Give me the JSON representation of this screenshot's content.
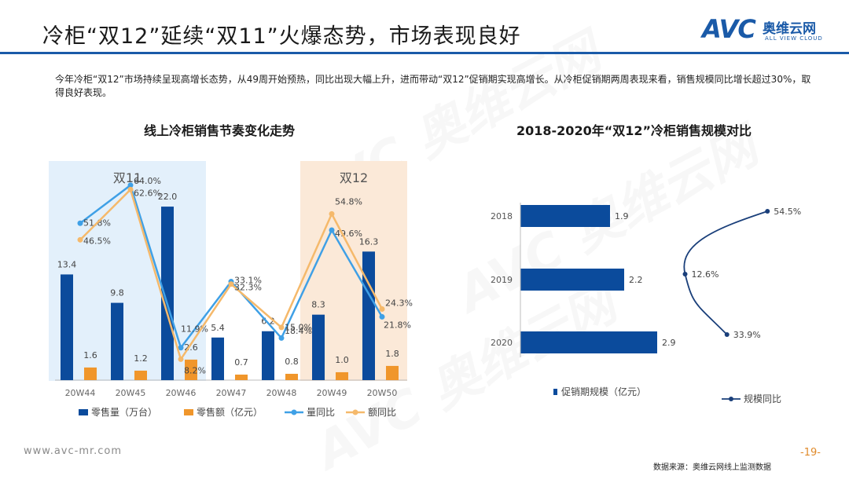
{
  "header": {
    "title": "冷柜“双12”延续“双11”火爆态势，市场表现良好",
    "logo": {
      "mark": "AVC",
      "name_cn": "奥维云网",
      "name_en": "ALL VIEW CLOUD"
    }
  },
  "intro": "今年冷柜“双12”市场持续呈现高增长态势，从49周开始预热，同比出现大幅上升，进而带动“双12”促销期实现高增长。从冷柜促销期两周表现来看，销售规模同比增长超过30%，取得良好表现。",
  "watermark": "AVC 奥维云网",
  "colors": {
    "accent_blue": "#1a5aa8",
    "bar_blue": "#0b4b9c",
    "bar_orange": "#f0962b",
    "line_blue": "#3fa0e6",
    "line_orange": "#f5b96b",
    "highlight_blue": "#e3f0fb",
    "highlight_orange": "#fbe9d8"
  },
  "chart_data": [
    {
      "type": "bar+line",
      "title": "线上冷柜销售节奏变化走势",
      "categories": [
        "20W44",
        "20W45",
        "20W46",
        "20W47",
        "20W48",
        "20W49",
        "20W50"
      ],
      "highlights": [
        {
          "label": "双11",
          "from": "20W44",
          "to": "20W46"
        },
        {
          "label": "双12",
          "from": "20W49",
          "to": "20W50"
        }
      ],
      "series": [
        {
          "name": "零售量（万台）",
          "type": "bar",
          "values": [
            13.4,
            9.8,
            22.0,
            5.4,
            6.2,
            8.3,
            16.3
          ],
          "labels": [
            "13.4",
            "9.8",
            "22.0",
            "5.4",
            "6.2",
            "8.3",
            "16.3"
          ]
        },
        {
          "name": "零售额（亿元）",
          "type": "bar",
          "values": [
            1.6,
            1.2,
            2.6,
            0.7,
            0.8,
            1.0,
            1.8
          ],
          "labels": [
            "1.6",
            "1.2",
            "2.6",
            "0.7",
            "0.8",
            "1.0",
            "1.8"
          ]
        },
        {
          "name": "量同比",
          "type": "line",
          "values": [
            51.8,
            64.0,
            11.9,
            33.1,
            15.0,
            49.6,
            21.8
          ],
          "labels": [
            "51.8%",
            "64.0%",
            "11.9%",
            "33.1%",
            "15.0%",
            "49.6%",
            "21.8%"
          ]
        },
        {
          "name": "额同比",
          "type": "line",
          "values": [
            46.5,
            62.6,
            8.2,
            32.3,
            18.4,
            54.8,
            24.3
          ],
          "labels": [
            "46.5%",
            "62.6%",
            "8.2%",
            "32.3%",
            "18.4%",
            "54.8%",
            "24.3%"
          ]
        }
      ],
      "bar_axis": {
        "min": 0,
        "max": 24
      },
      "line_axis": {
        "min": 0,
        "max": 70
      },
      "legend_position": "bottom"
    },
    {
      "type": "bar",
      "orientation": "horizontal",
      "title": "2018-2020年“双12”冷柜销售规模对比",
      "categories": [
        "2018",
        "2019",
        "2020"
      ],
      "series": [
        {
          "name": "促销期规模（亿元）",
          "type": "bar",
          "values": [
            1.9,
            2.2,
            2.9
          ],
          "labels": [
            "1.9",
            "2.2",
            "2.9"
          ]
        },
        {
          "name": "规模同比",
          "type": "line",
          "values": [
            54.5,
            12.6,
            33.9
          ],
          "labels": [
            "54.5%",
            "12.6%",
            "33.9%"
          ]
        }
      ],
      "bar_axis": {
        "min": 0,
        "max": 3.2
      },
      "line_axis": {
        "min": 0,
        "max": 60
      },
      "legend_position": "bottom"
    }
  ],
  "footer": {
    "url": "www.avc-mr.com",
    "page": "-19-",
    "source": "数据来源：奥维云网线上监测数据"
  }
}
